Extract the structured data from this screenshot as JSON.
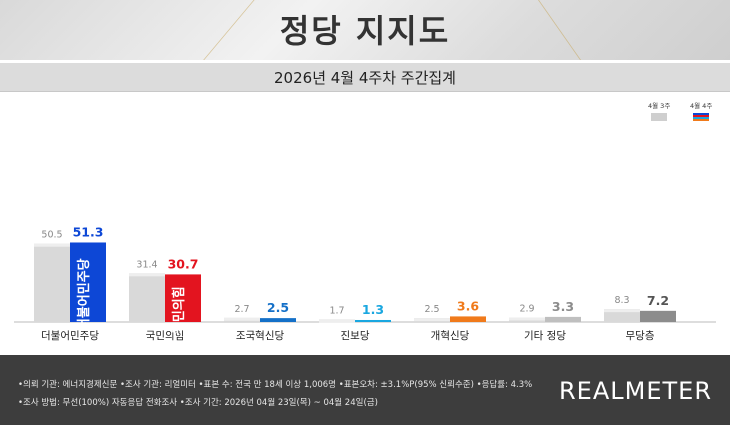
{
  "header": {
    "title": "정당 지지도",
    "subtitle": "2026년 4월 4주차 주간집계"
  },
  "legend": {
    "prev_label": "4월 3주",
    "curr_label": "4월 4주"
  },
  "colors": {
    "prev": "#d9d9d9",
    "curr": [
      "#0d47d6",
      "#e3141f",
      "#1470c8",
      "#1aa7e0",
      "#f07a1b",
      "#bfbfbf",
      "#8c8c8c"
    ],
    "curr_text": [
      "#0d47d6",
      "#e3141f",
      "#1470c8",
      "#1aa7e0",
      "#f07a1b",
      "#8c8c8c",
      "#555555"
    ]
  },
  "chart_data": {
    "type": "bar",
    "categories": [
      "더불어민주당",
      "국민의힘",
      "조국혁신당",
      "진보당",
      "개혁신당",
      "기타 정당",
      "무당층"
    ],
    "series": [
      {
        "name": "4월 3주",
        "values": [
          50.5,
          31.4,
          2.7,
          1.7,
          2.5,
          2.9,
          8.3
        ]
      },
      {
        "name": "4월 4주",
        "values": [
          51.3,
          30.7,
          2.5,
          1.3,
          3.6,
          3.3,
          7.2
        ]
      }
    ],
    "ylim": [
      0,
      55
    ]
  },
  "bar_logos": {
    "dem": "더불어민주당",
    "ppp": "국민의힘"
  },
  "footer": {
    "line1": "•의뢰 기관: 에너지경제신문  •조사 기관: 리얼미터 •표본 수: 전국 만 18세 이상 1,006명 •표본오차: ±3.1%P(95% 신뢰수준) •응답률: 4.3%",
    "line2": "•조사 방법: 무선(100%) 자동응답 전화조사  •조사 기간: 2026년 04월 23일(목) ~ 04월 24일(금)",
    "brand": "REALMETER"
  }
}
